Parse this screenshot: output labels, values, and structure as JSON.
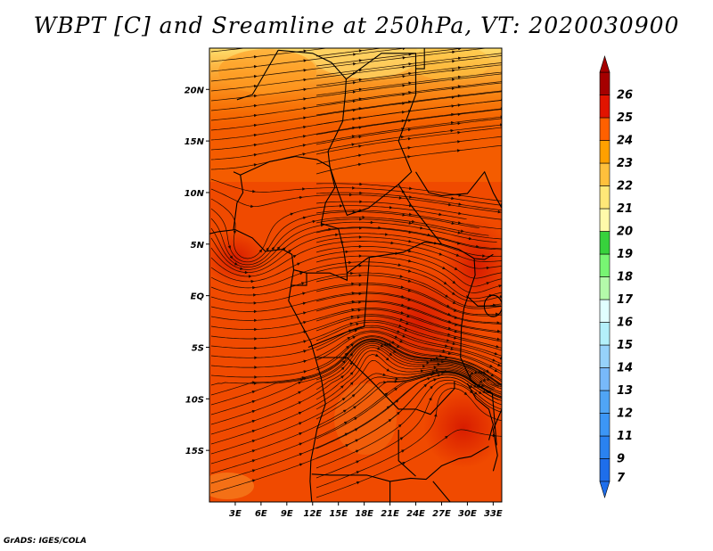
{
  "title": "WBPT [C] and Sreamline at 250hPa, VT: 2020030900",
  "credit": "GrADS: IGES/COLA",
  "map": {
    "lon_range": [
      0,
      34
    ],
    "lat_range": [
      -20,
      24
    ],
    "lon_ticks": [
      "3E",
      "6E",
      "9E",
      "12E",
      "15E",
      "18E",
      "21E",
      "24E",
      "27E",
      "30E",
      "33E"
    ],
    "lat_ticks": [
      "20N",
      "15N",
      "10N",
      "5N",
      "EQ",
      "5S",
      "10S",
      "15S"
    ],
    "dominant_field": "WBPT 22-24 C"
  },
  "colorbar": {
    "labels": [
      "7",
      "9",
      "11",
      "12",
      "13",
      "14",
      "15",
      "16",
      "17",
      "18",
      "19",
      "20",
      "21",
      "22",
      "23",
      "24",
      "25",
      "26"
    ],
    "colors": [
      "#1e6eeb",
      "#2a82f0",
      "#3c96f5",
      "#50a5f5",
      "#78b9fa",
      "#96d2fa",
      "#b4f0fa",
      "#e1ffff",
      "#b4faaa",
      "#78f573",
      "#37d23c",
      "#fffaaa",
      "#ffe878",
      "#ffc03c",
      "#ffa000",
      "#ff6000",
      "#e11400",
      "#a50000"
    ],
    "arrow_low_color": "#1e6eeb",
    "arrow_high_color": "#a50000"
  }
}
